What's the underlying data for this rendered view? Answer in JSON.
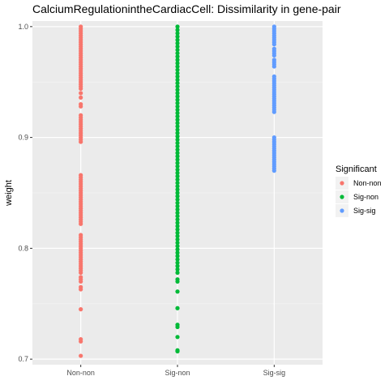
{
  "chart_data": {
    "type": "scatter",
    "title": "CalciumRegulationintheCardiacCell: Dissimilarity in gene-pair",
    "xlabel": "",
    "ylabel": "weight",
    "ylim": [
      0.695,
      1.005
    ],
    "yticks": [
      "0.7",
      "0.8",
      "0.9",
      "1.0"
    ],
    "ytick_values": [
      0.7,
      0.8,
      0.9,
      1.0
    ],
    "categories": [
      "Non-non",
      "Sig-non",
      "Sig-sig"
    ],
    "grid": true,
    "legend": {
      "title": "Significant",
      "placement": "right"
    },
    "series": [
      {
        "name": "Non-non",
        "category": "Non-non",
        "color": "#F8766D",
        "values": [
          1.0,
          0.998,
          0.996,
          0.994,
          0.992,
          0.99,
          0.988,
          0.986,
          0.984,
          0.982,
          0.98,
          0.978,
          0.976,
          0.974,
          0.972,
          0.97,
          0.968,
          0.966,
          0.964,
          0.962,
          0.96,
          0.958,
          0.956,
          0.954,
          0.952,
          0.95,
          0.948,
          0.946,
          0.944,
          0.94,
          0.936,
          0.93,
          0.928,
          0.92,
          0.918,
          0.916,
          0.914,
          0.912,
          0.91,
          0.908,
          0.906,
          0.904,
          0.902,
          0.9,
          0.898,
          0.896,
          0.866,
          0.864,
          0.862,
          0.86,
          0.858,
          0.856,
          0.854,
          0.852,
          0.85,
          0.848,
          0.846,
          0.844,
          0.842,
          0.84,
          0.838,
          0.836,
          0.834,
          0.832,
          0.83,
          0.828,
          0.826,
          0.824,
          0.822,
          0.812,
          0.81,
          0.808,
          0.806,
          0.804,
          0.802,
          0.8,
          0.798,
          0.796,
          0.794,
          0.792,
          0.79,
          0.788,
          0.786,
          0.784,
          0.782,
          0.78,
          0.778,
          0.774,
          0.772,
          0.77,
          0.765,
          0.763,
          0.745,
          0.718,
          0.716,
          0.703
        ]
      },
      {
        "name": "Sig-non",
        "category": "Sig-non",
        "color": "#00BA38",
        "values": [
          1.0,
          0.997,
          0.994,
          0.991,
          0.988,
          0.985,
          0.982,
          0.979,
          0.976,
          0.973,
          0.97,
          0.967,
          0.964,
          0.961,
          0.958,
          0.955,
          0.952,
          0.949,
          0.946,
          0.943,
          0.94,
          0.937,
          0.934,
          0.931,
          0.928,
          0.925,
          0.922,
          0.919,
          0.916,
          0.913,
          0.91,
          0.907,
          0.904,
          0.901,
          0.898,
          0.895,
          0.892,
          0.889,
          0.886,
          0.883,
          0.88,
          0.877,
          0.874,
          0.871,
          0.868,
          0.865,
          0.862,
          0.859,
          0.856,
          0.853,
          0.85,
          0.847,
          0.844,
          0.841,
          0.838,
          0.835,
          0.832,
          0.829,
          0.826,
          0.823,
          0.82,
          0.817,
          0.814,
          0.811,
          0.808,
          0.805,
          0.802,
          0.799,
          0.796,
          0.793,
          0.79,
          0.787,
          0.784,
          0.781,
          0.778,
          0.772,
          0.77,
          0.761,
          0.746,
          0.731,
          0.729,
          0.72,
          0.708,
          0.707
        ]
      },
      {
        "name": "Sig-sig",
        "category": "Sig-sig",
        "color": "#619CFF",
        "values": [
          1.0,
          0.998,
          0.996,
          0.994,
          0.992,
          0.99,
          0.988,
          0.986,
          0.984,
          0.98,
          0.978,
          0.976,
          0.974,
          0.97,
          0.968,
          0.966,
          0.964,
          0.955,
          0.953,
          0.951,
          0.949,
          0.947,
          0.945,
          0.943,
          0.941,
          0.939,
          0.937,
          0.935,
          0.933,
          0.931,
          0.929,
          0.927,
          0.925,
          0.923,
          0.9,
          0.898,
          0.896,
          0.894,
          0.892,
          0.89,
          0.888,
          0.886,
          0.884,
          0.882,
          0.88,
          0.878,
          0.876,
          0.874,
          0.872,
          0.87
        ]
      }
    ]
  }
}
